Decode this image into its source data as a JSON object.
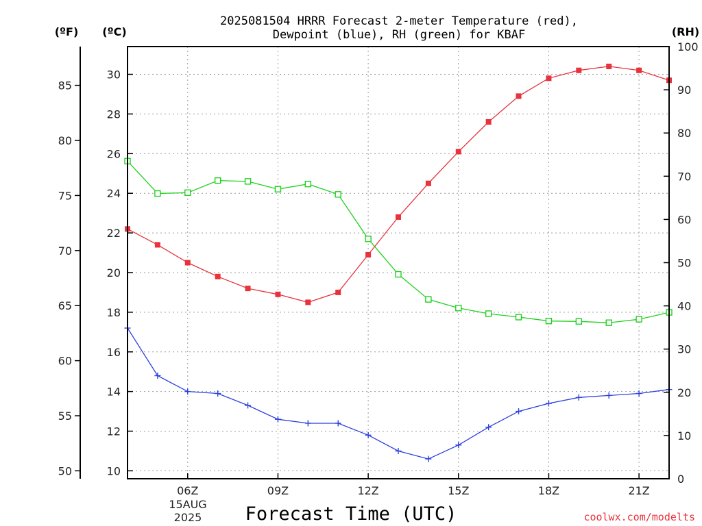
{
  "chart_data": {
    "type": "line",
    "title_line1": "2025081504 HRRR Forecast 2-meter Temperature (red),",
    "title_line2": "Dewpoint (blue), RH (green) for KBAF",
    "unit_f": "(ºF)",
    "unit_c": "(ºC)",
    "unit_rh": "(RH)",
    "xlabel": "Forecast Time (UTC)",
    "date_label_line1": "15AUG",
    "date_label_line2": "2025",
    "credit": "coolwx.com/modelts",
    "x_hours": [
      4,
      5,
      6,
      7,
      8,
      9,
      10,
      11,
      12,
      13,
      14,
      15,
      16,
      17,
      18,
      19,
      20,
      21,
      22
    ],
    "x_range": [
      4,
      22
    ],
    "x_ticks": [
      {
        "hour": 6,
        "label": "06Z"
      },
      {
        "hour": 9,
        "label": "09Z"
      },
      {
        "hour": 12,
        "label": "12Z"
      },
      {
        "hour": 15,
        "label": "15Z"
      },
      {
        "hour": 18,
        "label": "18Z"
      },
      {
        "hour": 21,
        "label": "21Z"
      }
    ],
    "celsius_axis": {
      "range": [
        9.6,
        31.4
      ],
      "ticks": [
        10,
        12,
        14,
        16,
        18,
        20,
        22,
        24,
        26,
        28,
        30
      ]
    },
    "fahrenheit_axis": {
      "ticks": [
        50,
        55,
        60,
        65,
        70,
        75,
        80,
        85
      ]
    },
    "rh_axis": {
      "range": [
        0,
        100
      ],
      "ticks": [
        0,
        10,
        20,
        30,
        40,
        50,
        60,
        70,
        80,
        90,
        100
      ]
    },
    "grid": true,
    "series": [
      {
        "name": "Temperature",
        "color": "#e8323c",
        "marker": "filled-square",
        "axis": "celsius",
        "values": [
          22.2,
          21.4,
          20.5,
          19.8,
          19.2,
          18.9,
          18.5,
          19.0,
          20.9,
          22.8,
          24.5,
          26.1,
          27.6,
          28.9,
          29.8,
          30.2,
          30.4,
          30.2,
          29.7
        ]
      },
      {
        "name": "Dewpoint",
        "color": "#2b3fe0",
        "marker": "plus",
        "axis": "celsius",
        "values": [
          17.2,
          14.8,
          14.0,
          13.9,
          13.3,
          12.6,
          12.4,
          12.4,
          11.8,
          11.0,
          10.6,
          11.3,
          12.2,
          13.0,
          13.4,
          13.7,
          13.8,
          13.9,
          14.1
        ]
      },
      {
        "name": "RH",
        "color": "#1fd11f",
        "marker": "open-square",
        "axis": "rh",
        "values": [
          73.5,
          66.0,
          66.2,
          69.0,
          68.8,
          67.0,
          68.2,
          65.8,
          55.5,
          47.3,
          41.5,
          39.5,
          38.2,
          37.4,
          36.5,
          36.4,
          36.1,
          36.9,
          38.5
        ]
      }
    ]
  }
}
